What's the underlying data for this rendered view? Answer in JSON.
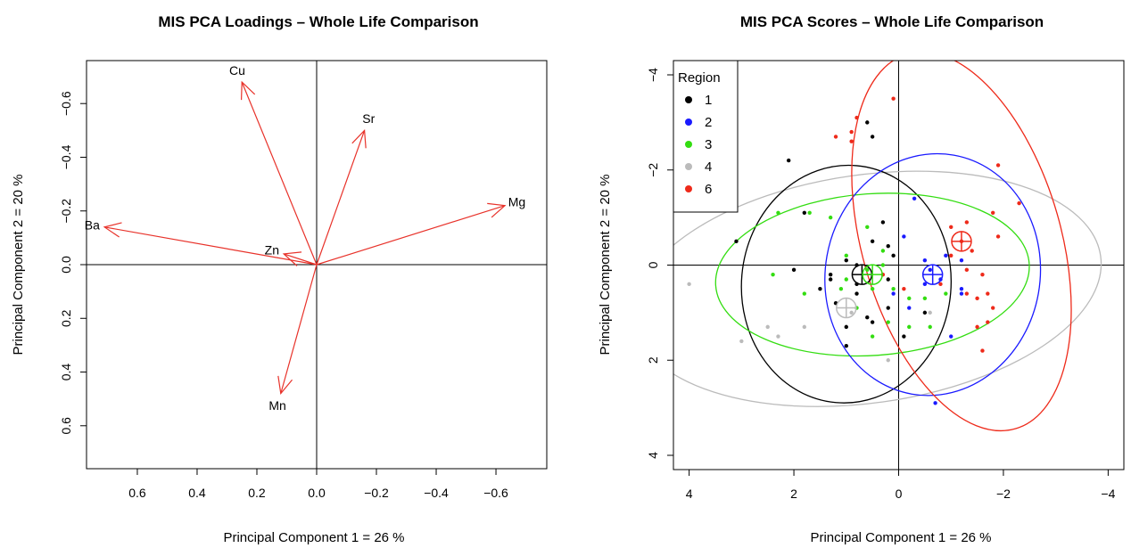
{
  "chart_data": [
    {
      "type": "biplot-loadings",
      "title": "MIS PCA Loadings – Whole Life Comparison",
      "xlabel": "Principal Component 1 =  26 %",
      "ylabel": "Principal Component 2 =  20 %",
      "x_ticks": [
        0.6,
        0.4,
        0.2,
        0.0,
        -0.2,
        -0.4,
        -0.6
      ],
      "x_tick_labels": [
        "0.6",
        "0.4",
        "0.2",
        "0.0",
        "−0.2",
        "−0.4",
        "−0.6"
      ],
      "y_ticks": [
        -0.6,
        -0.4,
        -0.2,
        0.0,
        0.2,
        0.4,
        0.6
      ],
      "y_tick_labels": [
        "−0.6",
        "−0.4",
        "−0.2",
        "0.0",
        "0.2",
        "0.4",
        "0.6"
      ],
      "xlim": [
        0.77,
        -0.77
      ],
      "ylim": [
        -0.76,
        0.76
      ],
      "reversed_axes": true,
      "arrow_color": "#e8322a",
      "vectors": [
        {
          "name": "Cu",
          "x": 0.25,
          "y": -0.68
        },
        {
          "name": "Sr",
          "x": -0.16,
          "y": -0.5
        },
        {
          "name": "Mg",
          "x": -0.63,
          "y": -0.22
        },
        {
          "name": "Ba",
          "x": 0.71,
          "y": -0.14
        },
        {
          "name": "Zn",
          "x": 0.11,
          "y": -0.04
        },
        {
          "name": "Mn",
          "x": 0.12,
          "y": 0.48
        }
      ]
    },
    {
      "type": "scatter",
      "title": "MIS PCA Scores – Whole Life Comparison",
      "xlabel": "Principal Component 1 =  26 %",
      "ylabel": "Principal Component 2 =  20 %",
      "x_ticks": [
        4,
        2,
        0,
        -2,
        -4
      ],
      "x_tick_labels": [
        "4",
        "2",
        "0",
        "−2",
        "−4"
      ],
      "y_ticks": [
        -4,
        -2,
        0,
        2,
        4
      ],
      "y_tick_labels": [
        "−4",
        "−2",
        "0",
        "2",
        "4"
      ],
      "xlim": [
        4.3,
        -4.3
      ],
      "ylim": [
        -4.3,
        4.3
      ],
      "reversed_axes": true,
      "legend": {
        "title": "Region",
        "position": "top-left"
      },
      "series": [
        {
          "name": "1",
          "color": "#000000",
          "centroid": [
            0.7,
            0.2
          ],
          "ellipse": {
            "cx": 1.0,
            "cy": 0.4,
            "rx": 2.0,
            "ry": 2.5,
            "angle": 5
          },
          "points": [
            [
              2.1,
              -2.2
            ],
            [
              1.8,
              -1.1
            ],
            [
              0.6,
              -3.0
            ],
            [
              0.5,
              -2.7
            ],
            [
              0.2,
              -0.4
            ],
            [
              0.5,
              -0.5
            ],
            [
              0.3,
              -0.9
            ],
            [
              0.1,
              -0.2
            ],
            [
              1.3,
              0.2
            ],
            [
              1.0,
              -0.1
            ],
            [
              0.8,
              0.4
            ],
            [
              0.8,
              0.6
            ],
            [
              1.0,
              1.3
            ],
            [
              1.5,
              0.5
            ],
            [
              1.2,
              0.8
            ],
            [
              1.0,
              1.7
            ],
            [
              0.5,
              1.2
            ],
            [
              0.2,
              0.9
            ],
            [
              0.6,
              1.1
            ],
            [
              1.3,
              0.3
            ],
            [
              -0.5,
              1.0
            ],
            [
              -0.1,
              1.5
            ],
            [
              3.1,
              -0.5
            ],
            [
              2.0,
              0.1
            ],
            [
              0.2,
              0.3
            ],
            [
              0.8,
              0.0
            ]
          ]
        },
        {
          "name": "2",
          "color": "#1a1aff",
          "centroid": [
            -0.65,
            0.2
          ],
          "ellipse": {
            "cx": -0.65,
            "cy": 0.2,
            "rx": 2.05,
            "ry": 2.55,
            "angle": 10
          },
          "points": [
            [
              -0.3,
              -1.4
            ],
            [
              -0.1,
              -0.6
            ],
            [
              -0.5,
              0.4
            ],
            [
              0.1,
              0.6
            ],
            [
              -0.9,
              -0.2
            ],
            [
              -0.6,
              0.1
            ],
            [
              -0.8,
              0.3
            ],
            [
              -1.2,
              0.5
            ],
            [
              -1.2,
              -0.1
            ],
            [
              -0.7,
              2.9
            ],
            [
              -1.0,
              1.5
            ],
            [
              -1.2,
              0.6
            ],
            [
              -0.2,
              0.9
            ],
            [
              -0.5,
              -0.1
            ]
          ]
        },
        {
          "name": "3",
          "color": "#33dd11",
          "centroid": [
            0.5,
            0.2
          ],
          "ellipse": {
            "cx": 0.5,
            "cy": 0.2,
            "rx": 3.0,
            "ry": 1.7,
            "angle": -4
          },
          "points": [
            [
              1.7,
              -1.1
            ],
            [
              2.3,
              -1.1
            ],
            [
              1.3,
              -1.0
            ],
            [
              0.6,
              -0.8
            ],
            [
              0.3,
              -0.3
            ],
            [
              1.0,
              -0.2
            ],
            [
              0.3,
              0.0
            ],
            [
              0.5,
              0.5
            ],
            [
              0.6,
              0.1
            ],
            [
              1.1,
              0.5
            ],
            [
              0.8,
              0.9
            ],
            [
              1.8,
              0.6
            ],
            [
              0.5,
              1.5
            ],
            [
              0.2,
              1.2
            ],
            [
              -0.2,
              0.7
            ],
            [
              -0.5,
              0.7
            ],
            [
              -0.9,
              0.6
            ],
            [
              -0.2,
              1.3
            ],
            [
              -0.6,
              1.3
            ],
            [
              2.4,
              0.2
            ],
            [
              1.0,
              0.3
            ],
            [
              0.1,
              0.5
            ]
          ]
        },
        {
          "name": "4",
          "color": "#bbbbbb",
          "centroid": [
            1.0,
            0.9
          ],
          "ellipse": {
            "cx": 0.6,
            "cy": 0.5,
            "rx": 4.5,
            "ry": 2.4,
            "angle": -8
          },
          "points": [
            [
              4.0,
              0.4
            ],
            [
              3.0,
              1.6
            ],
            [
              2.5,
              1.3
            ],
            [
              2.3,
              1.5
            ],
            [
              1.8,
              1.3
            ],
            [
              0.2,
              2.0
            ],
            [
              -0.6,
              1.0
            ],
            [
              0.9,
              1.0
            ]
          ]
        },
        {
          "name": "6",
          "color": "#ee2a1a",
          "centroid": [
            -1.2,
            -0.5
          ],
          "ellipse": {
            "cx": -1.2,
            "cy": -0.5,
            "rx": 1.9,
            "ry": 4.1,
            "angle": -16
          },
          "points": [
            [
              0.1,
              -3.5
            ],
            [
              0.8,
              -3.1
            ],
            [
              0.9,
              -2.8
            ],
            [
              0.9,
              -2.6
            ],
            [
              1.2,
              -2.7
            ],
            [
              -1.9,
              -2.1
            ],
            [
              -2.3,
              -1.3
            ],
            [
              -1.8,
              -1.1
            ],
            [
              -1.9,
              -0.6
            ],
            [
              -1.3,
              -0.9
            ],
            [
              -1.2,
              -0.5
            ],
            [
              -1.4,
              -0.3
            ],
            [
              -1.0,
              -0.2
            ],
            [
              -1.3,
              0.1
            ],
            [
              -1.6,
              0.2
            ],
            [
              -1.7,
              0.6
            ],
            [
              -1.5,
              0.7
            ],
            [
              -1.3,
              0.6
            ],
            [
              -1.8,
              0.9
            ],
            [
              -1.7,
              1.2
            ],
            [
              -1.5,
              1.3
            ],
            [
              -1.6,
              1.8
            ],
            [
              -0.1,
              0.5
            ],
            [
              -0.8,
              0.4
            ],
            [
              0.3,
              0.2
            ],
            [
              -1.0,
              -0.8
            ]
          ]
        }
      ]
    }
  ]
}
